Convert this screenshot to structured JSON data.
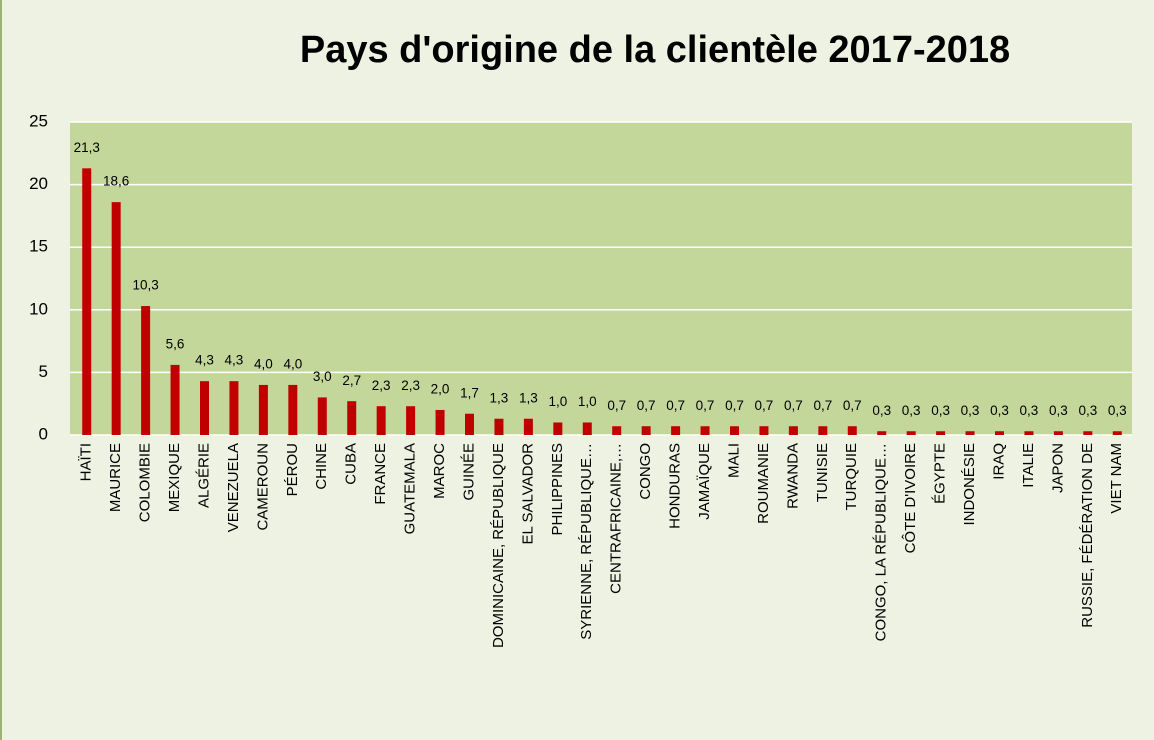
{
  "chart_data": {
    "type": "bar",
    "title": "Pays d'origine de la clientèle 2017-2018",
    "categories": [
      "HAÏTI",
      "MAURICE",
      "COLOMBIE",
      "MEXIQUE",
      "ALGÉRIE",
      "VENEZUELA",
      "CAMEROUN",
      "PÉROU",
      "CHINE",
      "CUBA",
      "FRANCE",
      "GUATEMALA",
      "MAROC",
      "GUINÉE",
      "DOMINICAINE, RÉPUBLIQUE",
      "EL SALVADOR",
      "PHILIPPINES",
      "SYRIENNE, RÉPUBLIQUE…",
      "CENTRAFRICAINE,…",
      "CONGO",
      "HONDURAS",
      "JAMAÏQUE",
      "MALI",
      "ROUMANIE",
      "RWANDA",
      "TUNISIE",
      "TURQUIE",
      "CONGO, LA RÉPUBLIQUE…",
      "CÔTE D'IVOIRE",
      "ÉGYPTE",
      "INDONÉSIE",
      "IRAQ",
      "ITALIE",
      "JAPON",
      "RUSSIE, FÉDÉRATION DE",
      "VIET NAM"
    ],
    "values": [
      21.3,
      18.6,
      10.3,
      5.6,
      4.3,
      4.3,
      4.0,
      4.0,
      3.0,
      2.7,
      2.3,
      2.3,
      2.0,
      1.7,
      1.3,
      1.3,
      1.0,
      1.0,
      0.7,
      0.7,
      0.7,
      0.7,
      0.7,
      0.7,
      0.7,
      0.7,
      0.7,
      0.3,
      0.3,
      0.3,
      0.3,
      0.3,
      0.3,
      0.3,
      0.3,
      0.3
    ],
    "value_labels": [
      "21,3",
      "18,6",
      "10,3",
      "5,6",
      "4,3",
      "4,3",
      "4,0",
      "4,0",
      "3,0",
      "2,7",
      "2,3",
      "2,3",
      "2,0",
      "1,7",
      "1,3",
      "1,3",
      "1,0",
      "1,0",
      "0,7",
      "0,7",
      "0,7",
      "0,7",
      "0,7",
      "0,7",
      "0,7",
      "0,7",
      "0,7",
      "0,3",
      "0,3",
      "0,3",
      "0,3",
      "0,3",
      "0,3",
      "0,3",
      "0,3",
      "0,3"
    ],
    "color": "#c00000",
    "ylim": [
      0,
      25
    ],
    "yticks": [
      0,
      5,
      10,
      15,
      20,
      25
    ],
    "grid": true
  }
}
